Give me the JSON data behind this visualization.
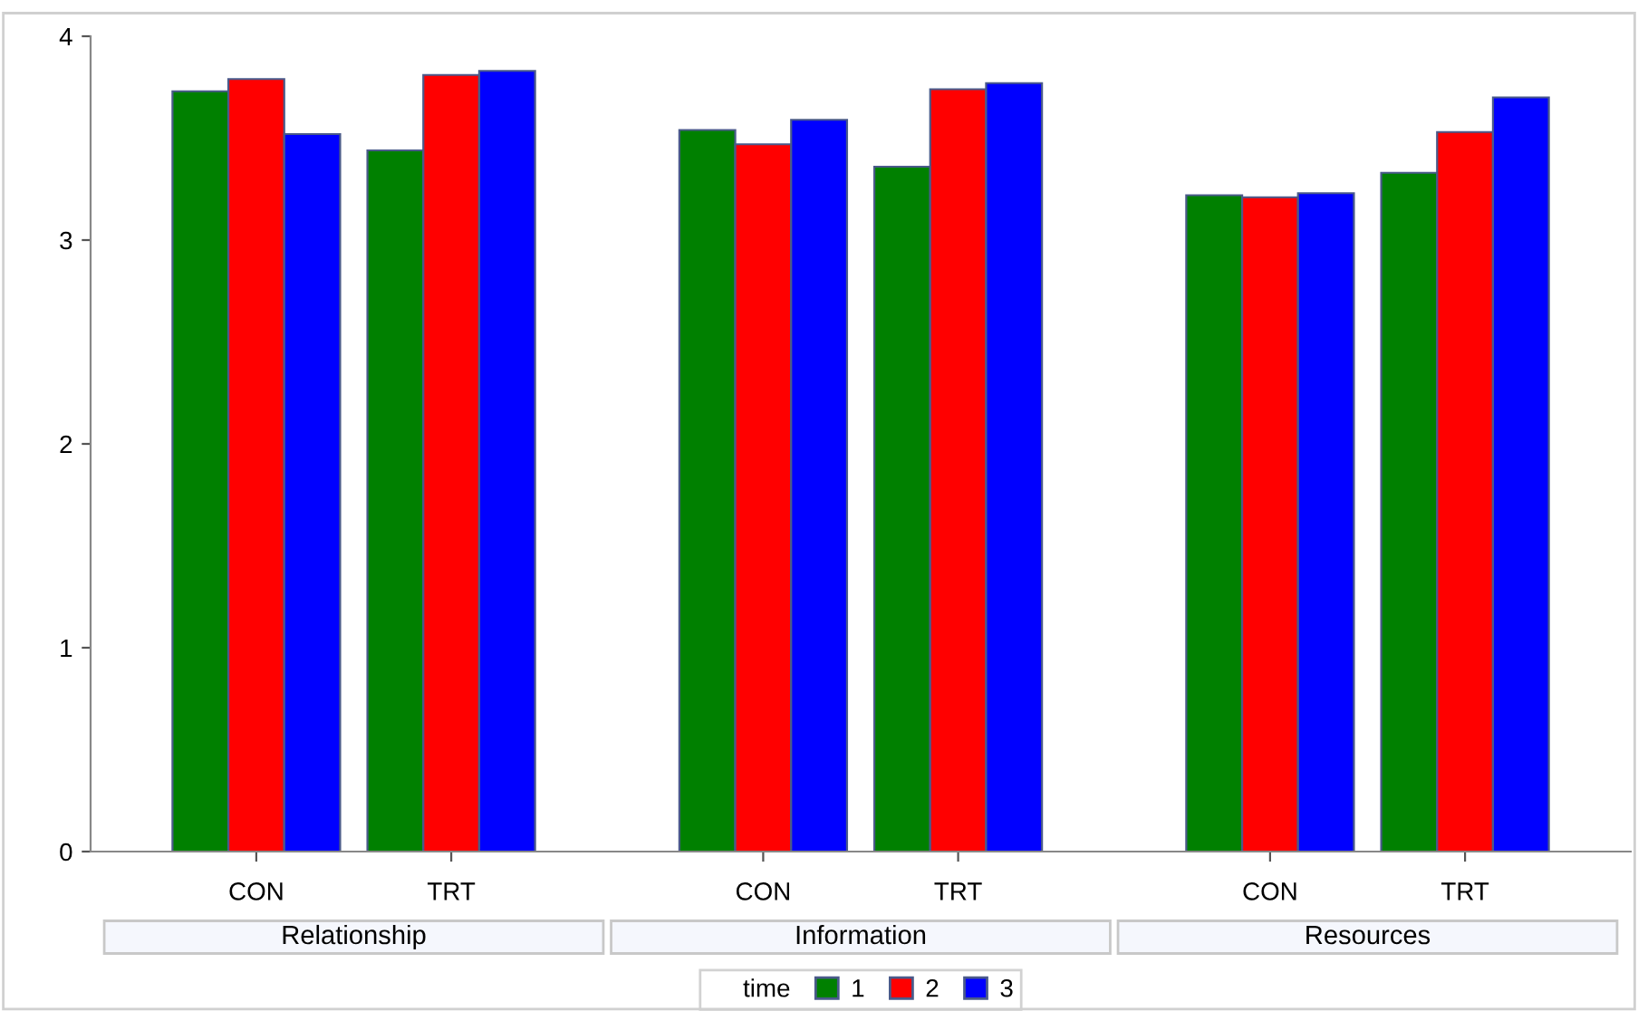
{
  "chart_data": {
    "type": "bar",
    "categories": [
      "CON",
      "TRT",
      "CON",
      "TRT",
      "CON",
      "TRT"
    ],
    "annotations": [
      "Relationship",
      "Information",
      "Resources"
    ],
    "series": [
      {
        "name": "1",
        "color": "#008000",
        "values": [
          3.73,
          3.44,
          3.54,
          3.36,
          3.22,
          3.33
        ]
      },
      {
        "name": "2",
        "color": "#ff0000",
        "values": [
          3.79,
          3.81,
          3.47,
          3.74,
          3.21,
          3.53
        ]
      },
      {
        "name": "3",
        "color": "#0000ff",
        "values": [
          3.52,
          3.83,
          3.59,
          3.77,
          3.23,
          3.7
        ]
      }
    ],
    "legend_title": "time",
    "legend": "bottom",
    "ylim": [
      0,
      4
    ],
    "yticks": [
      0,
      1,
      2,
      3,
      4
    ],
    "grid": false
  }
}
